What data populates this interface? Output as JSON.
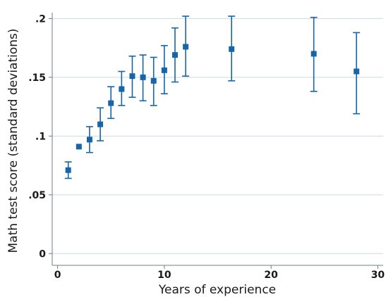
{
  "chart_data": {
    "type": "scatter",
    "title": "",
    "xlabel": "Years of experience",
    "ylabel": "Math test score (standard deviations)",
    "xlim": [
      -0.5,
      30.5
    ],
    "ylim": [
      -0.01,
      0.205
    ],
    "xticks": [
      0,
      10,
      20,
      30
    ],
    "xtick_labels": [
      "0",
      "10",
      "20",
      "30"
    ],
    "yticks": [
      0,
      0.05,
      0.1,
      0.15,
      0.2
    ],
    "ytick_labels": [
      "0",
      ".05",
      ".1",
      ".15",
      ".2"
    ],
    "grid": "horizontal",
    "color": "#1565a8",
    "points": [
      {
        "x": 1,
        "y": 0.071,
        "lo": 0.064,
        "hi": 0.078
      },
      {
        "x": 2,
        "y": 0.091,
        "lo": null,
        "hi": null
      },
      {
        "x": 3,
        "y": 0.097,
        "lo": 0.086,
        "hi": 0.108
      },
      {
        "x": 4,
        "y": 0.11,
        "lo": 0.096,
        "hi": 0.124
      },
      {
        "x": 5,
        "y": 0.128,
        "lo": 0.115,
        "hi": 0.142
      },
      {
        "x": 6,
        "y": 0.14,
        "lo": 0.126,
        "hi": 0.155
      },
      {
        "x": 7,
        "y": 0.151,
        "lo": 0.133,
        "hi": 0.168
      },
      {
        "x": 8,
        "y": 0.15,
        "lo": 0.13,
        "hi": 0.169
      },
      {
        "x": 9,
        "y": 0.147,
        "lo": 0.126,
        "hi": 0.167
      },
      {
        "x": 10,
        "y": 0.156,
        "lo": 0.136,
        "hi": 0.177
      },
      {
        "x": 11,
        "y": 0.169,
        "lo": 0.146,
        "hi": 0.192
      },
      {
        "x": 12,
        "y": 0.176,
        "lo": 0.151,
        "hi": 0.202
      },
      {
        "x": 16.3,
        "y": 0.174,
        "lo": 0.147,
        "hi": 0.202
      },
      {
        "x": 24,
        "y": 0.17,
        "lo": 0.138,
        "hi": 0.201
      },
      {
        "x": 28,
        "y": 0.155,
        "lo": 0.119,
        "hi": 0.188
      }
    ]
  }
}
